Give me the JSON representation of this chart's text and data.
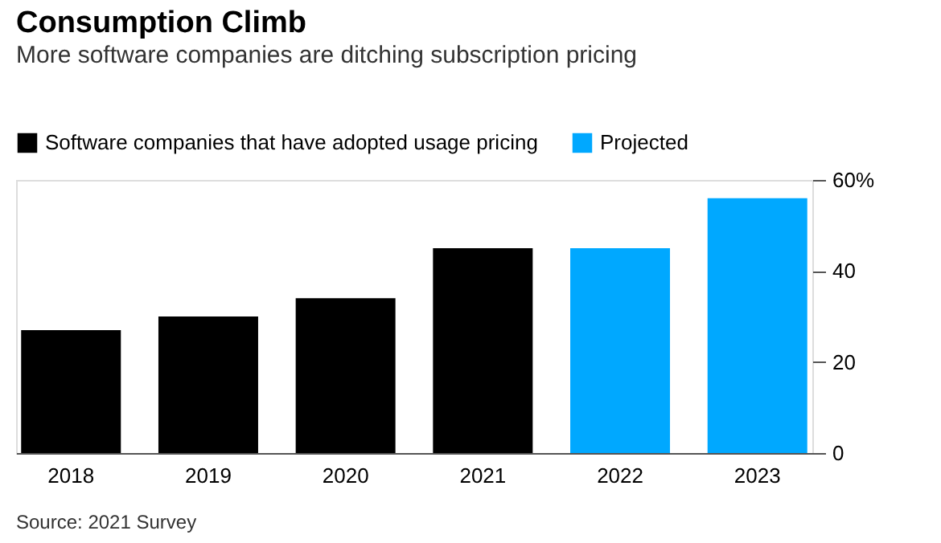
{
  "chart_data": {
    "type": "bar",
    "title": "Consumption Climb",
    "subtitle": "More software companies are ditching subscription pricing",
    "categories": [
      "2018",
      "2019",
      "2020",
      "2021",
      "2022",
      "2023"
    ],
    "series": [
      {
        "name": "Software companies that have adopted usage pricing",
        "color": "#000000",
        "values": [
          27,
          30,
          34,
          45,
          null,
          null
        ]
      },
      {
        "name": "Projected",
        "color": "#00a8ff",
        "values": [
          null,
          null,
          null,
          null,
          45,
          56
        ]
      }
    ],
    "ylim": [
      0,
      60
    ],
    "yticks": [
      0,
      20,
      40,
      {
        "value": 60,
        "label": "60%"
      }
    ],
    "grid": false,
    "legend": "top left",
    "annotations": [
      "Source: 2021 Survey"
    ]
  }
}
